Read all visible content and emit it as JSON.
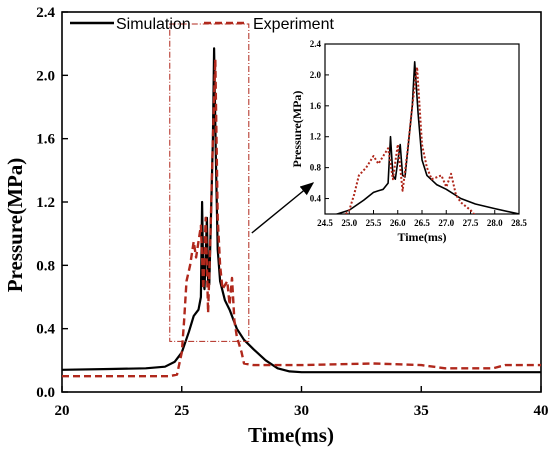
{
  "chart_data": {
    "type": "line",
    "xlabel": "Time(ms)",
    "ylabel": "Pressure(MPa)",
    "xlim": [
      20,
      40
    ],
    "ylim": [
      0,
      2.4
    ],
    "x_ticks": [
      "20",
      "25",
      "30",
      "35",
      "40"
    ],
    "y_ticks": [
      "0.0",
      "0.4",
      "0.8",
      "1.2",
      "1.6",
      "2.0",
      "2.4"
    ],
    "legend_position": "top-left",
    "series": [
      {
        "name": "Simulation",
        "style": "solid",
        "color": "#000000",
        "points": [
          [
            20,
            0.14
          ],
          [
            22,
            0.145
          ],
          [
            23.5,
            0.15
          ],
          [
            24.3,
            0.16
          ],
          [
            24.7,
            0.19
          ],
          [
            25,
            0.25
          ],
          [
            25.3,
            0.38
          ],
          [
            25.5,
            0.48
          ],
          [
            25.6,
            0.5
          ],
          [
            25.7,
            0.52
          ],
          [
            25.8,
            0.6
          ],
          [
            25.85,
            1.2
          ],
          [
            25.9,
            0.7
          ],
          [
            25.95,
            0.65
          ],
          [
            26.05,
            1.1
          ],
          [
            26.1,
            0.7
          ],
          [
            26.15,
            0.68
          ],
          [
            26.3,
            1.6
          ],
          [
            26.35,
            2.17
          ],
          [
            26.42,
            1.5
          ],
          [
            26.5,
            0.9
          ],
          [
            26.6,
            0.7
          ],
          [
            26.8,
            0.58
          ],
          [
            27,
            0.52
          ],
          [
            27.3,
            0.4
          ],
          [
            27.6,
            0.33
          ],
          [
            28,
            0.27
          ],
          [
            28.5,
            0.2
          ],
          [
            29,
            0.15
          ],
          [
            29.5,
            0.13
          ],
          [
            30,
            0.125
          ],
          [
            35,
            0.125
          ],
          [
            40,
            0.125
          ]
        ]
      },
      {
        "name": "Experiment",
        "style": "dashed",
        "color": "#b0281c",
        "points": [
          [
            20,
            0.1
          ],
          [
            24.5,
            0.1
          ],
          [
            24.8,
            0.11
          ],
          [
            25,
            0.25
          ],
          [
            25.1,
            0.45
          ],
          [
            25.2,
            0.7
          ],
          [
            25.35,
            0.8
          ],
          [
            25.5,
            0.95
          ],
          [
            25.6,
            0.85
          ],
          [
            25.8,
            1.05
          ],
          [
            25.9,
            0.65
          ],
          [
            26,
            1.1
          ],
          [
            26.1,
            0.5
          ],
          [
            26.2,
            1.0
          ],
          [
            26.3,
            1.6
          ],
          [
            26.4,
            2.1
          ],
          [
            26.5,
            1.1
          ],
          [
            26.6,
            0.8
          ],
          [
            26.7,
            0.65
          ],
          [
            26.9,
            0.7
          ],
          [
            27,
            0.55
          ],
          [
            27.1,
            0.72
          ],
          [
            27.2,
            0.45
          ],
          [
            27.3,
            0.35
          ],
          [
            27.5,
            0.25
          ],
          [
            27.6,
            0.18
          ],
          [
            28,
            0.17
          ],
          [
            30,
            0.17
          ],
          [
            33,
            0.18
          ],
          [
            35,
            0.17
          ],
          [
            36,
            0.15
          ],
          [
            38,
            0.15
          ],
          [
            38.5,
            0.17
          ],
          [
            40,
            0.17
          ]
        ]
      }
    ],
    "inset": {
      "xlabel": "Time(ms)",
      "ylabel": "Pressure(MPa)",
      "xlim": [
        24.5,
        28.5
      ],
      "ylim": [
        0.2,
        2.4
      ],
      "x_ticks": [
        "24.5",
        "25.0",
        "25.5",
        "26.0",
        "26.5",
        "27.0",
        "27.5",
        "28.0",
        "28.5"
      ],
      "y_ticks": [
        "0.4",
        "0.8",
        "1.2",
        "1.6",
        "2.0",
        "2.4"
      ]
    }
  }
}
